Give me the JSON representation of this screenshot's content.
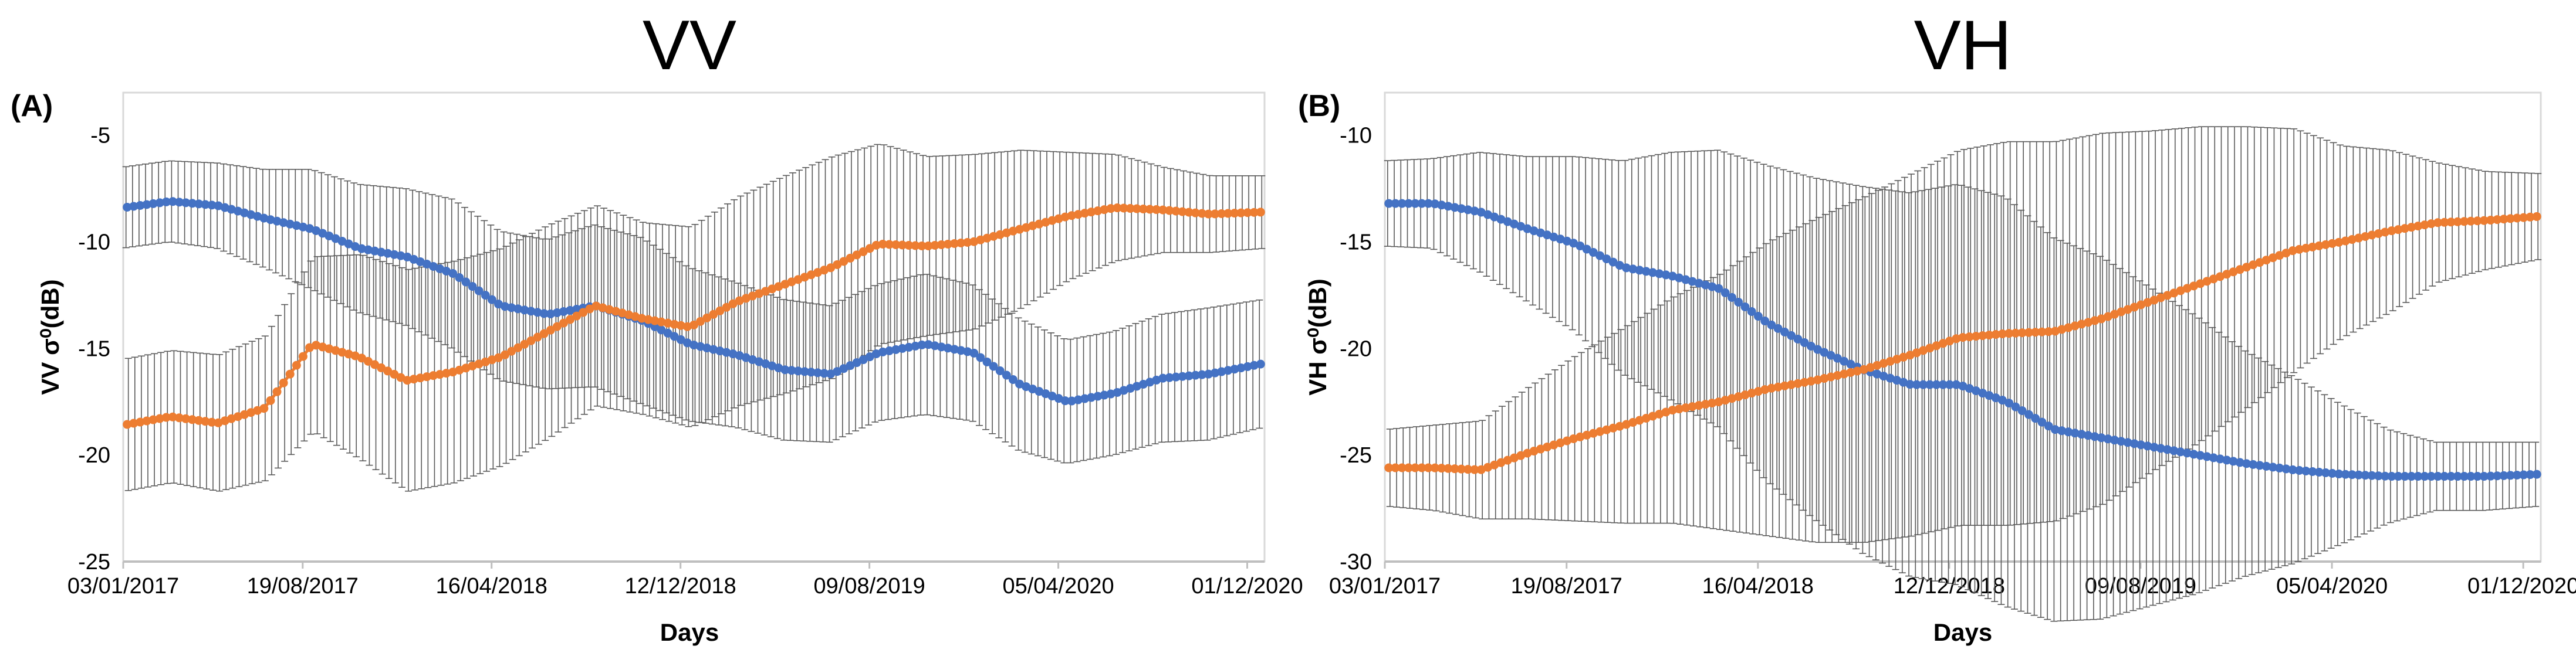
{
  "chart_data": [
    {
      "type": "line",
      "panel_label": "(A)",
      "title": "VV",
      "xlabel": "Days",
      "ylabel": "VV σ⁰(dB)",
      "ylim": [
        -25,
        -3
      ],
      "yticks": [
        -25,
        -20,
        -15,
        -10,
        -5
      ],
      "xticklabels": [
        "03/01/2017",
        "19/08/2017",
        "16/04/2018",
        "12/12/2018",
        "09/08/2019",
        "05/04/2020",
        "01/12/2020"
      ],
      "x_range_days": [
        0,
        1450
      ],
      "x_tick_days": [
        0,
        228,
        468,
        708,
        948,
        1188,
        1428
      ],
      "grid": false,
      "series": [
        {
          "name": "blue",
          "color": "#4472C4",
          "x": [
            0,
            60,
            120,
            180,
            240,
            300,
            360,
            420,
            480,
            540,
            600,
            660,
            720,
            780,
            840,
            900,
            960,
            1020,
            1080,
            1140,
            1200,
            1260,
            1320,
            1380,
            1450
          ],
          "y": [
            -8.4,
            -8.1,
            -8.3,
            -8.9,
            -9.4,
            -10.3,
            -10.7,
            -11.5,
            -13.0,
            -13.4,
            -13.0,
            -13.7,
            -14.8,
            -15.3,
            -16.0,
            -16.2,
            -15.2,
            -14.8,
            -15.2,
            -16.7,
            -17.5,
            -17.1,
            -16.4,
            -16.2,
            -15.7
          ],
          "err": [
            1.9,
            1.9,
            2.0,
            2.3,
            2.8,
            3.0,
            3.2,
            3.5,
            3.5,
            3.5,
            3.8,
            3.9,
            3.6,
            3.4,
            3.3,
            3.2,
            3.2,
            3.3,
            3.2,
            3.1,
            2.9,
            2.9,
            3.0,
            3.1,
            3.0
          ]
        },
        {
          "name": "orange",
          "color": "#ED7D31",
          "x": [
            0,
            60,
            120,
            180,
            240,
            300,
            360,
            420,
            480,
            540,
            600,
            660,
            720,
            780,
            840,
            900,
            960,
            1020,
            1080,
            1140,
            1200,
            1260,
            1320,
            1380,
            1450
          ],
          "y": [
            -18.6,
            -18.2,
            -18.5,
            -17.8,
            -14.8,
            -15.4,
            -16.5,
            -16.1,
            -15.4,
            -14.2,
            -13.0,
            -13.6,
            -14.0,
            -12.8,
            -12.0,
            -11.2,
            -10.1,
            -10.2,
            -10.0,
            -9.4,
            -8.8,
            -8.4,
            -8.5,
            -8.7,
            -8.6
          ],
          "err": [
            3.1,
            3.1,
            3.2,
            3.4,
            4.1,
            4.8,
            5.2,
            5.2,
            5.1,
            5.0,
            4.7,
            4.5,
            4.7,
            4.9,
            5.1,
            5.2,
            4.7,
            4.2,
            4.1,
            3.7,
            3.0,
            2.5,
            2.0,
            1.8,
            1.7
          ]
        }
      ]
    },
    {
      "type": "line",
      "panel_label": "(B)",
      "title": "VH",
      "xlabel": "Days",
      "ylabel": "VH σ⁰(dB)",
      "ylim": [
        -30,
        -8
      ],
      "yticks": [
        -30,
        -25,
        -20,
        -15,
        -10
      ],
      "xticklabels": [
        "03/01/2017",
        "19/08/2017",
        "16/04/2018",
        "12/12/2018",
        "09/08/2019",
        "05/04/2020",
        "01/12/2020"
      ],
      "x_range_days": [
        0,
        1450
      ],
      "x_tick_days": [
        0,
        228,
        468,
        708,
        948,
        1188,
        1428
      ],
      "grid": false,
      "series": [
        {
          "name": "blue",
          "color": "#4472C4",
          "x": [
            0,
            60,
            120,
            180,
            240,
            300,
            360,
            420,
            480,
            540,
            600,
            660,
            720,
            780,
            840,
            900,
            960,
            1020,
            1080,
            1140,
            1200,
            1260,
            1320,
            1380,
            1450
          ],
          "y": [
            -13.2,
            -13.2,
            -13.6,
            -14.4,
            -15.1,
            -16.2,
            -16.6,
            -17.2,
            -18.8,
            -20.0,
            -21.0,
            -21.7,
            -21.7,
            -22.5,
            -23.8,
            -24.2,
            -24.6,
            -25.0,
            -25.4,
            -25.7,
            -25.9,
            -26.0,
            -26.0,
            -26.0,
            -25.9
          ],
          "err": [
            2.0,
            2.1,
            2.8,
            3.4,
            4.1,
            5.0,
            5.8,
            6.5,
            7.4,
            8.0,
            8.6,
            9.0,
            9.4,
            9.6,
            9.0,
            8.5,
            7.5,
            6.5,
            5.3,
            4.4,
            3.3,
            2.2,
            1.6,
            1.6,
            1.5
          ]
        },
        {
          "name": "orange",
          "color": "#ED7D31",
          "x": [
            0,
            60,
            120,
            180,
            240,
            300,
            360,
            420,
            480,
            540,
            600,
            660,
            720,
            780,
            840,
            900,
            960,
            1020,
            1080,
            1140,
            1200,
            1260,
            1320,
            1380,
            1450
          ],
          "y": [
            -25.6,
            -25.6,
            -25.7,
            -24.9,
            -24.2,
            -23.6,
            -22.9,
            -22.5,
            -21.9,
            -21.5,
            -21.0,
            -20.3,
            -19.5,
            -19.3,
            -19.2,
            -18.6,
            -17.8,
            -17.0,
            -16.2,
            -15.4,
            -15.0,
            -14.5,
            -14.1,
            -14.0,
            -13.8
          ],
          "err": [
            1.8,
            2.0,
            2.3,
            3.1,
            3.9,
            4.6,
            5.3,
            6.0,
            6.9,
            7.6,
            8.1,
            8.5,
            8.8,
            9.0,
            8.9,
            8.7,
            8.0,
            7.4,
            6.6,
            5.7,
            4.5,
            3.8,
            2.8,
            2.3,
            2.0
          ]
        }
      ]
    }
  ]
}
